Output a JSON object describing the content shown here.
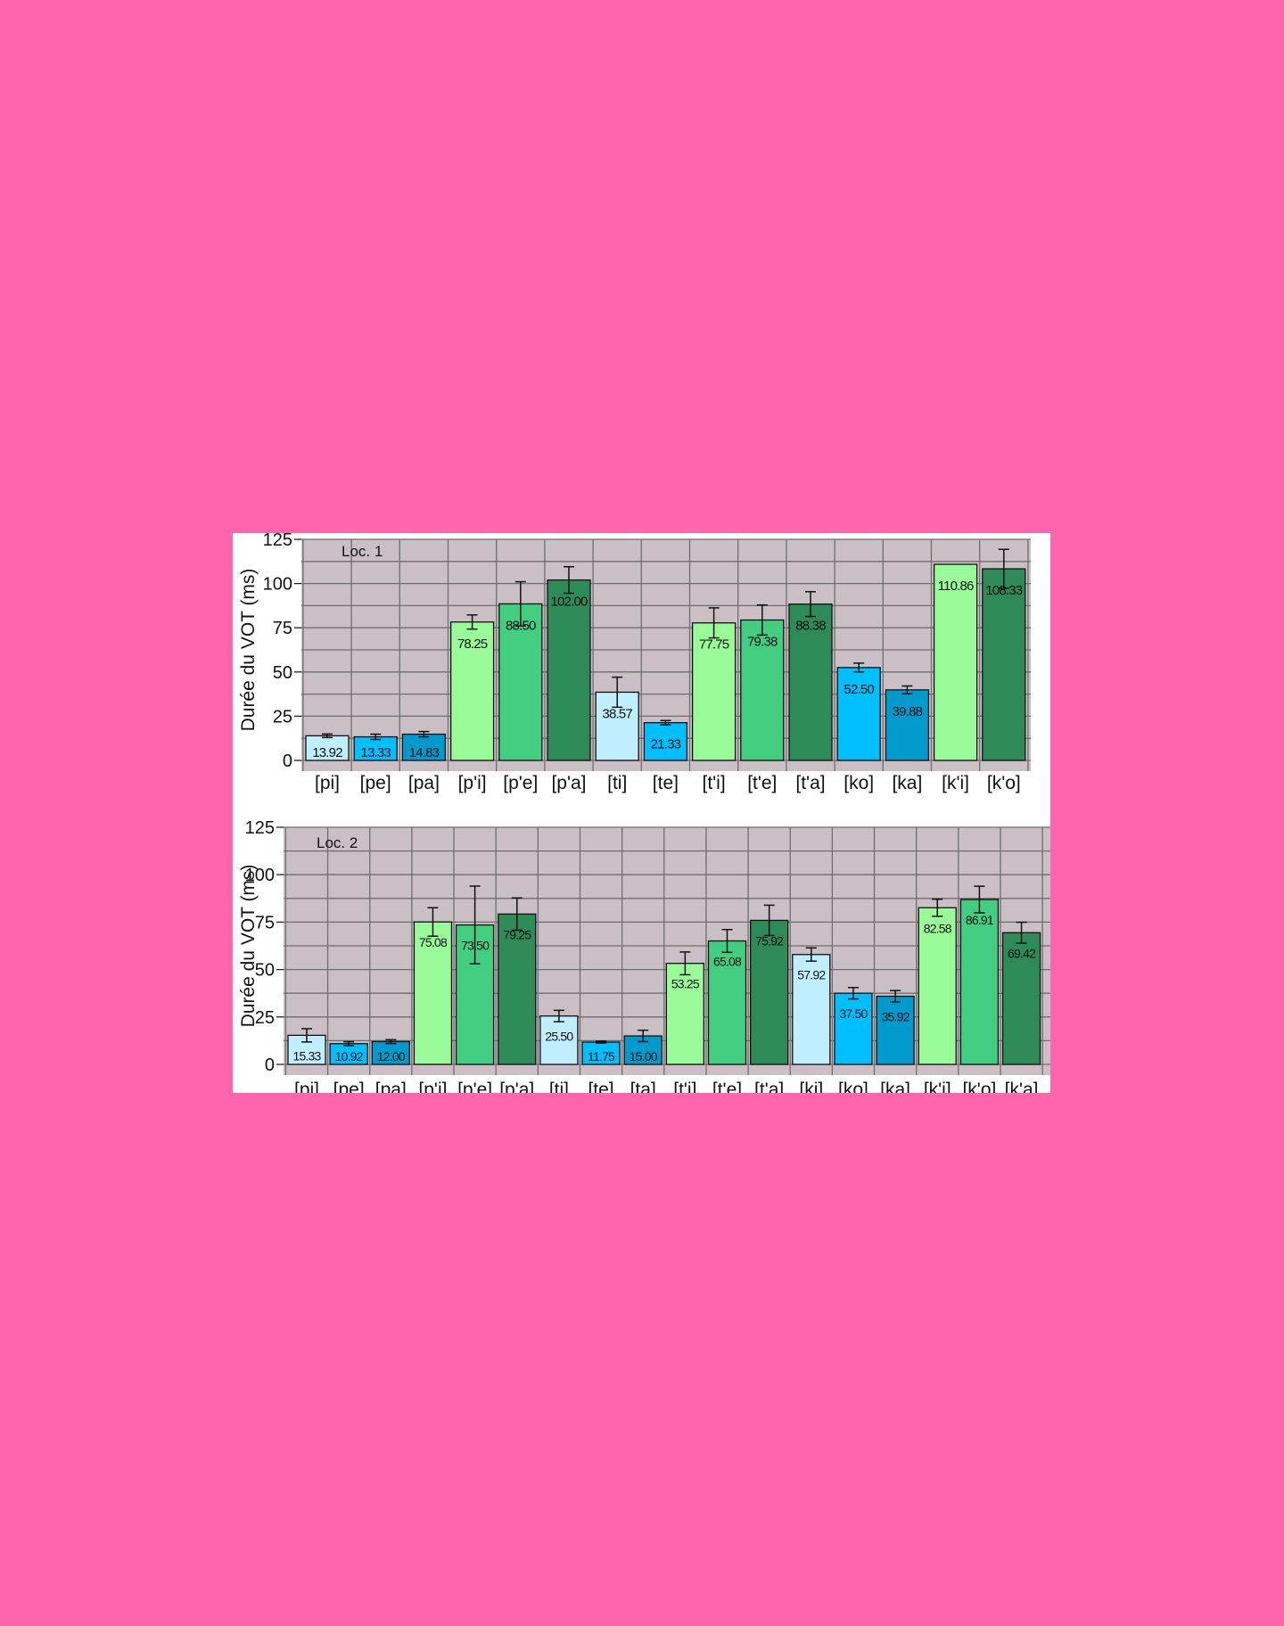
{
  "colors": {
    "page_background": "#ff66ad",
    "plot_background": "#cbbfc6",
    "grid": "#6e6e6e",
    "light_blue": "#bfefff",
    "blue": "#00bfff",
    "dark_blue": "#009acd",
    "light_green": "#98fb98",
    "green": "#43cd80",
    "dark_green": "#2e8b57"
  },
  "chart_data": [
    {
      "type": "bar",
      "annotation": "Loc. 1",
      "ylabel": "Durée du VOT (ms)",
      "ylim": [
        0,
        125
      ],
      "yticks": [
        0,
        25,
        50,
        75,
        100,
        125
      ],
      "grid": true,
      "error_bars": true,
      "categories": [
        "[pi]",
        "[pe]",
        "[pa]",
        "[p'i]",
        "[p'e]",
        "[p'a]",
        "[ti]",
        "[te]",
        "[t'i]",
        "[t'e]",
        "[t'a]",
        "[ko]",
        "[ka]",
        "[k'i]",
        "[k'o]"
      ],
      "values": [
        13.92,
        13.33,
        14.83,
        78.25,
        88.5,
        102.0,
        38.57,
        21.33,
        77.75,
        79.38,
        88.38,
        52.5,
        39.88,
        110.86,
        108.33
      ],
      "labels": [
        "13.92",
        "13.33",
        "14.83",
        "78.25",
        "88.50",
        "102.00",
        "38.57",
        "21.33",
        "77.75",
        "79.38",
        "88.38",
        "52.50",
        "39.88",
        "110.86",
        "108.33"
      ],
      "errors": [
        1,
        1.5,
        1.5,
        4,
        12.5,
        7.5,
        8.5,
        1.2,
        8.5,
        8.5,
        7,
        2.5,
        2.2,
        0,
        11
      ],
      "color_keys": [
        "light_blue",
        "blue",
        "dark_blue",
        "light_green",
        "green",
        "dark_green",
        "light_blue",
        "blue",
        "light_green",
        "green",
        "dark_green",
        "blue",
        "dark_blue",
        "light_green",
        "dark_green"
      ]
    },
    {
      "type": "bar",
      "annotation": "Loc. 2",
      "ylabel": "Durée du VOT (ms)",
      "ylim": [
        0,
        125
      ],
      "yticks": [
        0,
        25,
        50,
        75,
        100,
        125
      ],
      "grid": true,
      "error_bars": true,
      "categories": [
        "[pi]",
        "[pe]",
        "[pa]",
        "[p'i]",
        "[p'e]",
        "[p'a]",
        "[ti]",
        "[te]",
        "[ta]",
        "[t'i]",
        "[t'e]",
        "[t'a]",
        "[ki]",
        "[ko]",
        "[ka]",
        "[k'i]",
        "[k'o]",
        "[k'a]"
      ],
      "values": [
        15.33,
        10.92,
        12.0,
        75.08,
        73.5,
        79.25,
        25.5,
        11.75,
        15.0,
        53.25,
        65.08,
        75.92,
        57.92,
        37.5,
        35.92,
        82.58,
        86.91,
        69.42
      ],
      "labels": [
        "15.33",
        "10.92",
        "12.00",
        "75.08",
        "73.50",
        "79.25",
        "25.50",
        "11.75",
        "15.00",
        "53.25",
        "65.08",
        "75.92",
        "57.92",
        "37.50",
        "35.92",
        "82.58",
        "86.91",
        "69.42"
      ],
      "errors": [
        3.5,
        1,
        1,
        7.5,
        20.5,
        8.5,
        3,
        0.5,
        3,
        6,
        6,
        8,
        3.5,
        3,
        3,
        4.5,
        7,
        5.5
      ],
      "color_keys": [
        "light_blue",
        "blue",
        "dark_blue",
        "light_green",
        "green",
        "dark_green",
        "light_blue",
        "blue",
        "dark_blue",
        "light_green",
        "green",
        "dark_green",
        "light_blue",
        "blue",
        "dark_blue",
        "light_green",
        "green",
        "dark_green"
      ]
    }
  ]
}
